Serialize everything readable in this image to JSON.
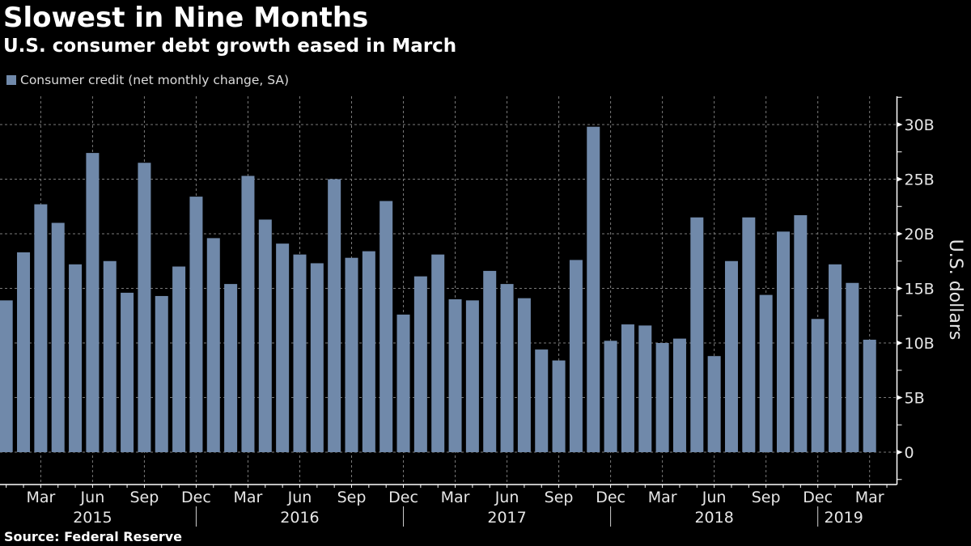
{
  "header": {
    "title": "Slowest in Nine Months",
    "subtitle": "U.S. consumer debt growth eased in March"
  },
  "footer": {
    "source": "Source: Federal Reserve"
  },
  "colors": {
    "background": "#000000",
    "bar": "#7089aa",
    "text": "#ffffff",
    "grid": "#7a7a7a"
  },
  "chart_data": {
    "type": "bar",
    "title": "Slowest in Nine Months",
    "subtitle": "U.S. consumer debt growth eased in March",
    "xlabel": "",
    "ylabel": "U.S. dollars",
    "legend": {
      "entries": [
        "Consumer credit (net monthly change, SA)"
      ],
      "placement": "top-left"
    },
    "ylim": [
      -2.5,
      32.5
    ],
    "yticks": [
      0,
      5,
      10,
      15,
      20,
      25,
      30
    ],
    "ytick_labels": [
      "0",
      "5B",
      "10B",
      "15B",
      "20B",
      "25B",
      "30B"
    ],
    "y_axis_side": "right",
    "grid": true,
    "x_tick_labels": [
      {
        "index": 2,
        "label": "Mar"
      },
      {
        "index": 5,
        "label": "Jun"
      },
      {
        "index": 8,
        "label": "Sep"
      },
      {
        "index": 11,
        "label": "Dec"
      },
      {
        "index": 14,
        "label": "Mar"
      },
      {
        "index": 17,
        "label": "Jun"
      },
      {
        "index": 20,
        "label": "Sep"
      },
      {
        "index": 23,
        "label": "Dec"
      },
      {
        "index": 26,
        "label": "Mar"
      },
      {
        "index": 29,
        "label": "Jun"
      },
      {
        "index": 32,
        "label": "Sep"
      },
      {
        "index": 35,
        "label": "Dec"
      },
      {
        "index": 38,
        "label": "Mar"
      },
      {
        "index": 41,
        "label": "Jun"
      },
      {
        "index": 44,
        "label": "Sep"
      },
      {
        "index": 47,
        "label": "Dec"
      },
      {
        "index": 50,
        "label": "Mar"
      }
    ],
    "year_labels": [
      {
        "label": "2015",
        "center_index": 5
      },
      {
        "label": "2016",
        "center_index": 17
      },
      {
        "label": "2017",
        "center_index": 29
      },
      {
        "label": "2018",
        "center_index": 41
      },
      {
        "label": "2019",
        "center_index": 48.5
      }
    ],
    "year_separators_after_index": [
      11,
      23,
      35,
      47
    ],
    "categories": [
      "Jan 2015",
      "Feb 2015",
      "Mar 2015",
      "Apr 2015",
      "May 2015",
      "Jun 2015",
      "Jul 2015",
      "Aug 2015",
      "Sep 2015",
      "Oct 2015",
      "Nov 2015",
      "Dec 2015",
      "Jan 2016",
      "Feb 2016",
      "Mar 2016",
      "Apr 2016",
      "May 2016",
      "Jun 2016",
      "Jul 2016",
      "Aug 2016",
      "Sep 2016",
      "Oct 2016",
      "Nov 2016",
      "Dec 2016",
      "Jan 2017",
      "Feb 2017",
      "Mar 2017",
      "Apr 2017",
      "May 2017",
      "Jun 2017",
      "Jul 2017",
      "Aug 2017",
      "Sep 2017",
      "Oct 2017",
      "Nov 2017",
      "Dec 2017",
      "Jan 2018",
      "Feb 2018",
      "Mar 2018",
      "Apr 2018",
      "May 2018",
      "Jun 2018",
      "Jul 2018",
      "Aug 2018",
      "Sep 2018",
      "Oct 2018",
      "Nov 2018",
      "Dec 2018",
      "Jan 2019",
      "Feb 2019",
      "Mar 2019"
    ],
    "series": [
      {
        "name": "Consumer credit (net monthly change, SA)",
        "unit": "billion USD",
        "values": [
          13.9,
          18.3,
          22.7,
          21.0,
          17.2,
          27.4,
          17.5,
          14.6,
          26.5,
          14.3,
          17.0,
          23.4,
          19.6,
          15.4,
          25.3,
          21.3,
          19.1,
          18.1,
          17.3,
          25.0,
          17.8,
          18.4,
          23.0,
          12.6,
          16.1,
          18.1,
          14.0,
          13.9,
          16.6,
          15.4,
          14.1,
          9.4,
          8.4,
          17.6,
          29.8,
          10.2,
          11.7,
          11.6,
          10.0,
          10.4,
          21.5,
          8.8,
          17.5,
          21.5,
          14.4,
          20.2,
          21.7,
          12.2,
          17.2,
          15.5,
          10.3
        ]
      }
    ]
  }
}
